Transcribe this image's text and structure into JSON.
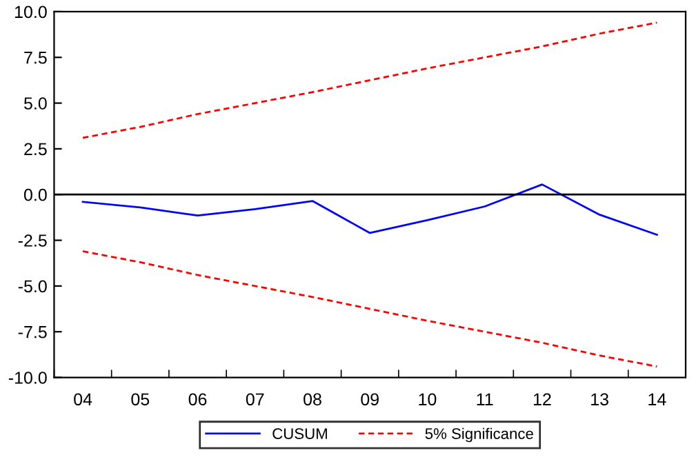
{
  "chart_data": {
    "type": "line",
    "categories": [
      "04",
      "05",
      "06",
      "07",
      "08",
      "09",
      "10",
      "11",
      "12",
      "13",
      "14"
    ],
    "series": [
      {
        "name": "CUSUM",
        "color": "#0000ff",
        "line_style": "solid",
        "values": [
          -0.4,
          -0.7,
          -1.15,
          -0.8,
          -0.35,
          -2.1,
          -1.4,
          -0.65,
          0.55,
          -1.1,
          -2.2
        ]
      },
      {
        "name": "5% Significance",
        "color": "#ff0000",
        "line_style": "dashed",
        "values": [
          3.1,
          3.7,
          4.4,
          5.0,
          5.6,
          6.25,
          6.9,
          7.5,
          8.1,
          8.8,
          9.4
        ]
      },
      {
        "color": "#ff0000",
        "line_style": "dashed",
        "values": [
          -3.1,
          -3.7,
          -4.4,
          -5.0,
          -5.6,
          -6.25,
          -6.9,
          -7.5,
          -8.1,
          -8.8,
          -9.4
        ]
      }
    ],
    "ylim": [
      -10.0,
      10.0
    ],
    "yticks": [
      {
        "value": -10,
        "label": "-10.0"
      },
      {
        "value": -7.5,
        "label": "-7.5"
      },
      {
        "value": -5,
        "label": "-5.0"
      },
      {
        "value": -2.5,
        "label": "-2.5"
      },
      {
        "value": 0,
        "label": "0.0"
      },
      {
        "value": 2.5,
        "label": "2.5"
      },
      {
        "value": 5,
        "label": "5.0"
      },
      {
        "value": 7.5,
        "label": "7.5"
      },
      {
        "value": 10,
        "label": "10.0"
      }
    ],
    "ref_lines": [
      {
        "axis": "y",
        "value": 0,
        "color": "#000000",
        "line_style": "solid"
      }
    ],
    "grid": false,
    "legend": "bottom",
    "marker": "none"
  }
}
